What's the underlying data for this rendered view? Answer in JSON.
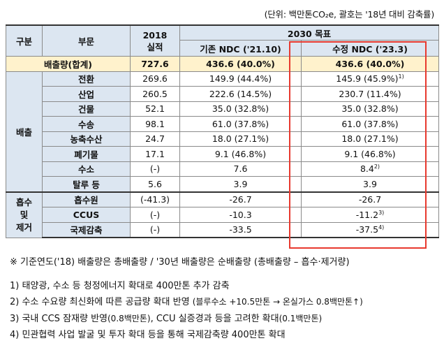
{
  "unit_note": "(단위: 백만톤CO₂e, 괄호는 '18년 대비 감축률)",
  "headers": {
    "category": "구분",
    "sector": "부문",
    "actual_2018": "2018\n실적",
    "actual_2018_l1": "2018",
    "actual_2018_l2": "실적",
    "target_2030": "2030 목표",
    "existing_ndc": "기존 NDC ('21.10)",
    "revised_ndc": "수정 NDC ('23.3)"
  },
  "total_row": {
    "label": "배출량(합계)",
    "actual": "727.6",
    "existing": "436.6 (40.0%)",
    "revised": "436.6 (40.0%)"
  },
  "emission_group": "배출",
  "emission_rows": [
    {
      "sector": "전환",
      "actual": "269.6",
      "existing": "149.9 (44.4%)",
      "revised": "145.9 (45.9%)",
      "revised_sup": "1)"
    },
    {
      "sector": "산업",
      "actual": "260.5",
      "existing": "222.6 (14.5%)",
      "revised": "230.7 (11.4%)",
      "revised_sup": ""
    },
    {
      "sector": "건물",
      "actual": "52.1",
      "existing": "35.0 (32.8%)",
      "revised": "35.0 (32.8%)",
      "revised_sup": ""
    },
    {
      "sector": "수송",
      "actual": "98.1",
      "existing": "61.0 (37.8%)",
      "revised": "61.0 (37.8%)",
      "revised_sup": ""
    },
    {
      "sector": "농축수산",
      "actual": "24.7",
      "existing": "18.0 (27.1%)",
      "revised": "18.0 (27.1%)",
      "revised_sup": ""
    },
    {
      "sector": "폐기물",
      "actual": "17.1",
      "existing": "9.1 (46.8%)",
      "revised": "9.1 (46.8%)",
      "revised_sup": ""
    },
    {
      "sector": "수소",
      "actual": "(-)",
      "existing": "7.6",
      "revised": "8.4",
      "revised_sup": "2)"
    },
    {
      "sector": "탈루 등",
      "actual": "5.6",
      "existing": "3.9",
      "revised": "3.9",
      "revised_sup": ""
    }
  ],
  "removal_group": {
    "l1": "흡수",
    "l2": "및",
    "l3": "제거"
  },
  "removal_rows": [
    {
      "sector": "흡수원",
      "actual": "(-41.3)",
      "existing": "-26.7",
      "revised": "-26.7",
      "revised_sup": ""
    },
    {
      "sector": "CCUS",
      "actual": "(-)",
      "existing": "-10.3",
      "revised": "-11.2",
      "revised_sup": "3)"
    },
    {
      "sector": "국제감축",
      "actual": "(-)",
      "existing": "-33.5",
      "revised": "-37.5",
      "revised_sup": "4)"
    }
  ],
  "notes": {
    "main": "※ 기준연도('18) 배출량은 총배출량 / '30년 배출량은 순배출량 (총배출량 – 흡수·제거량)",
    "n1": "1) 태양광, 수소 등 청정에너지 확대로 400만톤 추가 감축",
    "n2a": "2) 수소 수요량 최신화에 따른 공급량 확대 반영 ",
    "n2b": "(블루수소 +10.5만톤 → 온실가스 0.8백만톤↑)",
    "n3a": "3) 국내 CCS 잠재량 반영",
    "n3b": "(0.8백만톤)",
    "n3c": ", CCU 실증경과 등을 고려한 확대",
    "n3d": "(0.1백만톤)",
    "n4": "4) 민관협력 사업 발굴 및 투자 확대 등을 통해 국제감축량 400만톤 확대"
  },
  "colors": {
    "header_bg": "#dce6f1",
    "total_bg": "#fff2cc",
    "highlight_box": "#e8392e"
  }
}
